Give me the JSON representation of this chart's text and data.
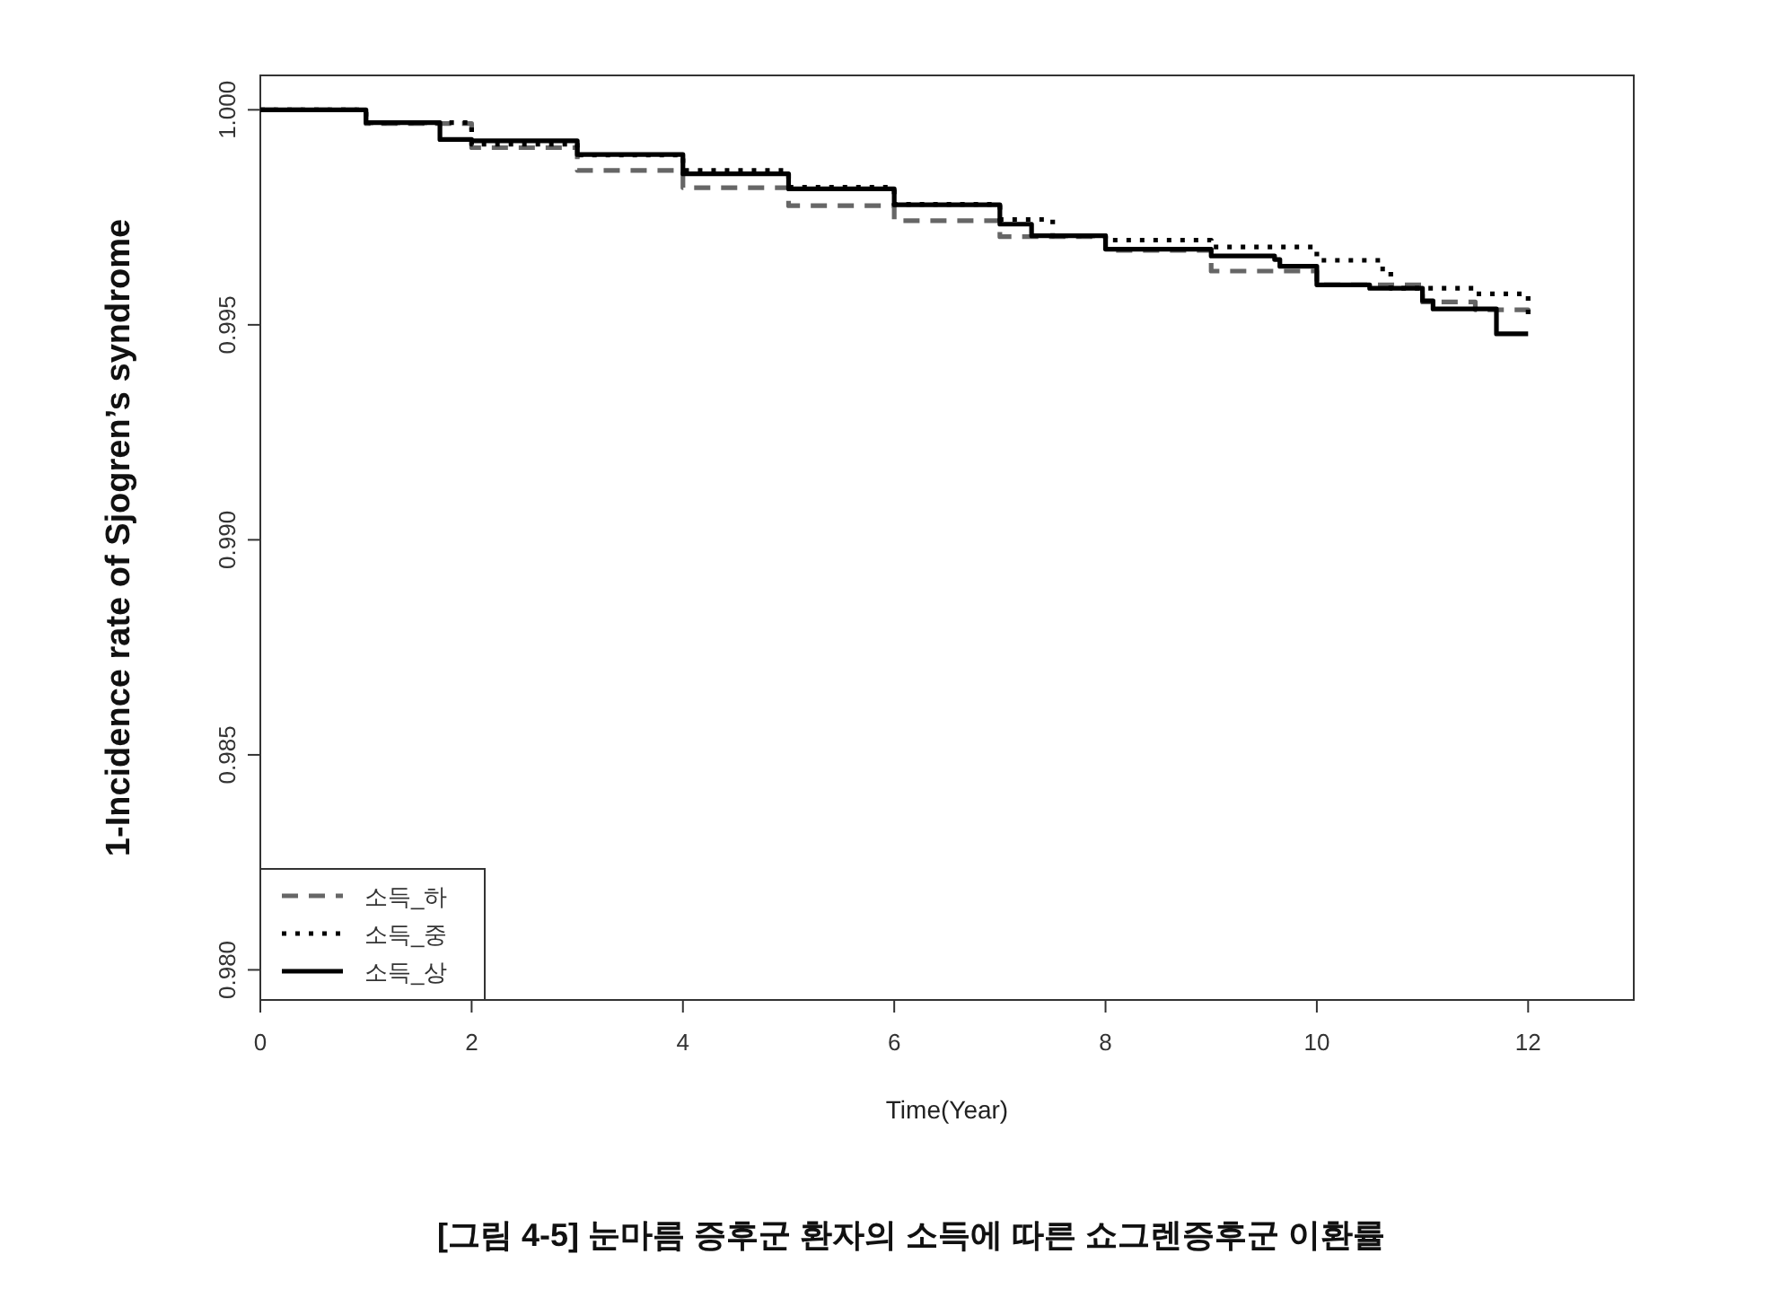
{
  "chart_data": {
    "type": "step",
    "title": "[그림 4-5] 눈마름 증후군 환자의 소득에 따른 쇼그렌증후군 이환률",
    "xlabel": "Time(Year)",
    "ylabel": "1-Incidence rate  of Sjogren’s syndrome",
    "xlim": [
      0,
      13
    ],
    "ylim": [
      0.9793,
      1.0008
    ],
    "xticks": [
      0,
      2,
      4,
      6,
      8,
      10,
      12
    ],
    "yticks": [
      {
        "value": 0.98,
        "label": "0.980"
      },
      {
        "value": 0.985,
        "label": "0.985"
      },
      {
        "value": 0.99,
        "label": "0.990"
      },
      {
        "value": 0.995,
        "label": "0.995"
      },
      {
        "value": 1.0,
        "label": "1.000"
      }
    ],
    "grid": false,
    "legend": "bottom left",
    "series": [
      {
        "name": "소득_하",
        "color": "#666666",
        "line_style": "dashed",
        "x": [
          0,
          1,
          2,
          3,
          4,
          5,
          6,
          7,
          8,
          9,
          10,
          11,
          11.5,
          12
        ],
        "values": [
          1.0,
          0.99968,
          0.99912,
          0.99859,
          0.99819,
          0.99777,
          0.99742,
          0.99705,
          0.99673,
          0.99625,
          0.99593,
          0.99553,
          0.99535,
          0.99521
        ]
      },
      {
        "name": "소득_중",
        "color": "#000000",
        "line_style": "dotted",
        "x": [
          0,
          1,
          2,
          3,
          4,
          5,
          6,
          7,
          7.5,
          8,
          9,
          10,
          10.6,
          10.7,
          11.5,
          11.9,
          12
        ],
        "values": [
          1.0,
          0.9997,
          0.9992,
          0.99895,
          0.99859,
          0.9982,
          0.9978,
          0.99745,
          0.99707,
          0.99697,
          0.99681,
          0.9965,
          0.9963,
          0.99585,
          0.99572,
          0.99572,
          0.99521
        ]
      },
      {
        "name": "소득_상",
        "color": "#000000",
        "line_style": "solid",
        "x": [
          0,
          1,
          1.7,
          2,
          3,
          4,
          5,
          6,
          7,
          7.3,
          8,
          9,
          9.6,
          9.65,
          10,
          10.5,
          11,
          11.1,
          11.6,
          11.7,
          12
        ],
        "values": [
          1.0,
          0.9997,
          0.99931,
          0.99928,
          0.99896,
          0.99851,
          0.99816,
          0.99779,
          0.99734,
          0.99707,
          0.99676,
          0.9966,
          0.99652,
          0.99636,
          0.99593,
          0.99585,
          0.99556,
          0.99537,
          0.99537,
          0.99479,
          0.99479
        ]
      }
    ]
  }
}
